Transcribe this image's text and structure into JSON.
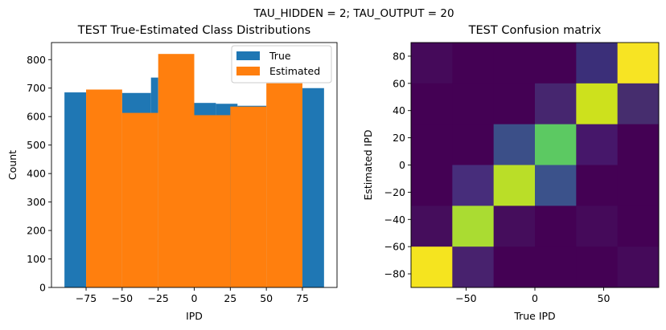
{
  "suptitle": "TAU_HIDDEN = 2; TAU_OUTPUT = 20",
  "colors": {
    "true": "#1f77b4",
    "estimated": "#ff7f0e"
  },
  "chart_data": [
    {
      "type": "bar",
      "title": "TEST True-Estimated Class Distributions",
      "xlabel": "IPD",
      "ylabel": "Count",
      "xlim": [
        -99,
        99
      ],
      "ylim": [
        0,
        860
      ],
      "xticks": [
        -75,
        -50,
        -25,
        0,
        25,
        50,
        75
      ],
      "xtick_labels": [
        "−75",
        "−50",
        "−25",
        "0",
        "25",
        "50",
        "75"
      ],
      "yticks": [
        0,
        100,
        200,
        300,
        400,
        500,
        600,
        700,
        800
      ],
      "yticks_labels": [
        "0",
        "100",
        "200",
        "300",
        "400",
        "500",
        "600",
        "700",
        "800"
      ],
      "legend": {
        "position": "top-right",
        "entries": [
          "True",
          "Estimated"
        ]
      },
      "series": [
        {
          "name": "True",
          "color": "#1f77b4",
          "bins": [
            {
              "x0": -90,
              "x1": -75,
              "value": 685
            },
            {
              "x0": -50,
              "x1": -30,
              "value": 683
            },
            {
              "x0": -30,
              "x1": -25,
              "value": 737
            },
            {
              "x0": 0,
              "x1": 15,
              "value": 648
            },
            {
              "x0": 15,
              "x1": 30,
              "value": 645
            },
            {
              "x0": 30,
              "x1": 50,
              "value": 638
            },
            {
              "x0": 75,
              "x1": 90,
              "value": 700
            }
          ]
        },
        {
          "name": "Estimated",
          "color": "#ff7f0e",
          "bins": [
            {
              "x0": -75,
              "x1": -50,
              "value": 695
            },
            {
              "x0": -50,
              "x1": -25,
              "value": 613
            },
            {
              "x0": -25,
              "x1": 0,
              "value": 820
            },
            {
              "x0": 0,
              "x1": 25,
              "value": 605
            },
            {
              "x0": 25,
              "x1": 50,
              "value": 635
            },
            {
              "x0": 50,
              "x1": 75,
              "value": 717
            }
          ]
        }
      ]
    },
    {
      "type": "heatmap",
      "title": "TEST Confusion matrix",
      "xlabel": "True IPD",
      "ylabel": "Estimated IPD",
      "xlim": [
        -90,
        90
      ],
      "ylim": [
        -90,
        90
      ],
      "xticks": [
        -50,
        0,
        50
      ],
      "xtick_labels": [
        "−50",
        "0",
        "50"
      ],
      "yticks": [
        80,
        60,
        40,
        20,
        0,
        -20,
        -40,
        -60,
        -80
      ],
      "ytick_labels": [
        "80",
        "60",
        "40",
        "20",
        "0",
        "−20",
        "−40",
        "−60",
        "−80"
      ],
      "columns": [
        "-90..-60",
        "-60..-30",
        "-30..0",
        "0..30",
        "30..60",
        "60..90"
      ],
      "rows_top_to_bottom": [
        "90..60",
        "60..30",
        "30..0",
        "0..-30",
        "-30..-60",
        "-60..-90"
      ],
      "cell_colors": [
        [
          "#450a5a",
          "#440154",
          "#440154",
          "#440154",
          "#3b2f79",
          "#f7e423"
        ],
        [
          "#440154",
          "#440154",
          "#440154",
          "#46266f",
          "#cde11d",
          "#462d6e"
        ],
        [
          "#440154",
          "#440154",
          "#3b4f88",
          "#5cc962",
          "#46176a",
          "#440154"
        ],
        [
          "#440154",
          "#472d7b",
          "#bade28",
          "#3b528b",
          "#440154",
          "#440154"
        ],
        [
          "#450d5c",
          "#aadc32",
          "#450d5c",
          "#440154",
          "#450a5a",
          "#440154"
        ],
        [
          "#f5e41f",
          "#48226e",
          "#440154",
          "#440154",
          "#440154",
          "#450a5a"
        ]
      ]
    }
  ]
}
